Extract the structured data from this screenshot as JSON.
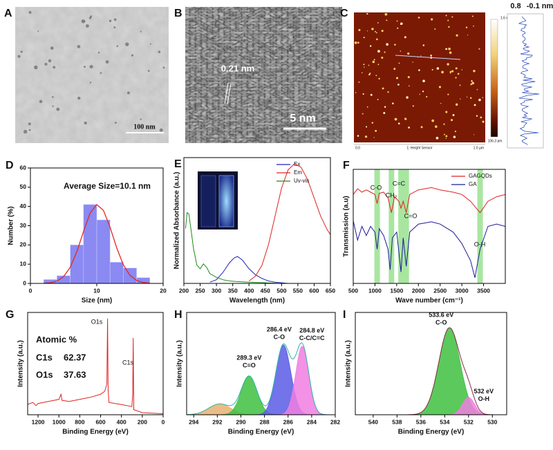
{
  "images": [
    {
      "label": "A",
      "scale_bar": "100 nm"
    },
    {
      "label": "B",
      "annotation": "0.21 nm",
      "scale_bar": "5 nm"
    },
    {
      "label": "C",
      "colorbar": [
        "1.6 nm",
        "106.3 pm"
      ],
      "x_axis": [
        "0.0",
        "1: Height Sensor",
        "1.0 µm"
      ],
      "profile_labels": [
        "0.8",
        "-0.1 nm"
      ]
    }
  ],
  "chart_data": [
    {
      "type": "histogram",
      "label": "D",
      "xlabel": "Size (nm)",
      "ylabel": "Number (%)",
      "annotations": [
        "Average Size=10.1 nm"
      ],
      "bins": [
        2,
        4,
        6,
        8,
        10,
        12,
        14,
        16,
        18
      ],
      "values": [
        2,
        4,
        20,
        41,
        33,
        11,
        8,
        3
      ],
      "color": "#8a8af2",
      "fit": {
        "color": "#e8251f",
        "x": [
          2,
          3,
          4,
          5,
          6,
          7,
          8,
          9,
          10,
          11,
          12,
          13,
          14,
          15,
          16,
          17,
          18
        ],
        "values": [
          0.08,
          0.35,
          1.2,
          3.5,
          8.4,
          16.5,
          27,
          36.6,
          41,
          38,
          29.2,
          18.5,
          9.7,
          4.2,
          1.5,
          0.45,
          0.1
        ]
      },
      "xlim": [
        0,
        20
      ],
      "xticks": [
        0,
        10,
        20
      ],
      "ylim": [
        0,
        60
      ],
      "yticks": [
        0,
        10,
        20,
        30,
        40,
        50,
        60
      ]
    },
    {
      "type": "line",
      "label": "E",
      "xlabel": "Wavelength (nm)",
      "ylabel": "Normalized Absorbance (a.u.)",
      "xlim": [
        200,
        650
      ],
      "xticks": [
        200,
        250,
        300,
        350,
        400,
        450,
        500,
        550,
        600,
        650
      ],
      "ylim": [
        0,
        1.03
      ],
      "legend": "top-right",
      "series": [
        {
          "name": "Ex",
          "color": "#1f1fbf",
          "x": [
            280,
            300,
            320,
            340,
            355,
            365,
            380,
            400,
            420,
            440,
            460,
            480,
            500,
            520
          ],
          "values": [
            0.01,
            0.03,
            0.09,
            0.17,
            0.21,
            0.22,
            0.19,
            0.12,
            0.07,
            0.04,
            0.02,
            0.01,
            0.005,
            0
          ]
        },
        {
          "name": "Em",
          "color": "#e02020",
          "x": [
            400,
            420,
            440,
            460,
            480,
            500,
            520,
            540,
            560,
            580,
            600,
            620,
            640,
            650
          ],
          "values": [
            0.02,
            0.06,
            0.15,
            0.32,
            0.55,
            0.78,
            0.93,
            0.98,
            0.95,
            0.85,
            0.7,
            0.55,
            0.44,
            0.4
          ]
        },
        {
          "name": "Uv-vis",
          "color": "#1a8a1a",
          "x": [
            205,
            210,
            215,
            220,
            230,
            240,
            250,
            260,
            270,
            280,
            300,
            320,
            340,
            360,
            400,
            450,
            500,
            550,
            600,
            650
          ],
          "values": [
            0.45,
            0.58,
            0.57,
            0.48,
            0.28,
            0.15,
            0.12,
            0.16,
            0.13,
            0.08,
            0.05,
            0.03,
            0.02,
            0.015,
            0.01,
            0.005,
            0,
            0,
            0,
            0
          ]
        }
      ]
    },
    {
      "type": "line",
      "label": "F",
      "xlabel": "Wave number (cm⁻¹)",
      "ylabel": "Transmission (a.u)",
      "xlim": [
        500,
        4000
      ],
      "xticks": [
        500,
        1000,
        1500,
        2000,
        2500,
        3000,
        3500
      ],
      "ylim": [
        0,
        1
      ],
      "legend": "top-right",
      "bands": [
        1050,
        1380,
        1600,
        1720,
        3420
      ],
      "band_color": "#a8e6a0",
      "annotations": [
        "C-O",
        "CH₂",
        "C=C",
        "C=O",
        "O-H"
      ],
      "series": [
        {
          "name": "GAGQDs",
          "color": "#e02020",
          "x": [
            500,
            600,
            700,
            800,
            900,
            1000,
            1050,
            1100,
            1200,
            1300,
            1380,
            1450,
            1550,
            1600,
            1650,
            1720,
            1800,
            2000,
            2300,
            2500,
            2800,
            3000,
            3200,
            3420,
            3600,
            3800,
            4000
          ],
          "values": [
            0.78,
            0.83,
            0.8,
            0.82,
            0.8,
            0.78,
            0.7,
            0.79,
            0.8,
            0.75,
            0.62,
            0.76,
            0.72,
            0.66,
            0.72,
            0.62,
            0.78,
            0.82,
            0.84,
            0.82,
            0.8,
            0.78,
            0.72,
            0.62,
            0.72,
            0.76,
            0.78
          ]
        },
        {
          "name": "GA",
          "color": "#1a1a9a",
          "x": [
            500,
            600,
            700,
            800,
            900,
            1000,
            1050,
            1100,
            1200,
            1300,
            1350,
            1400,
            1500,
            1600,
            1650,
            1720,
            1800,
            2000,
            2300,
            2500,
            2800,
            3000,
            3200,
            3300,
            3420,
            3600,
            3800,
            4000
          ],
          "values": [
            0.55,
            0.38,
            0.5,
            0.42,
            0.5,
            0.45,
            0.3,
            0.48,
            0.42,
            0.3,
            0.12,
            0.4,
            0.45,
            0.1,
            0.4,
            0.15,
            0.45,
            0.52,
            0.54,
            0.52,
            0.45,
            0.35,
            0.2,
            0.05,
            0.3,
            0.5,
            0.52,
            0.5
          ]
        }
      ]
    },
    {
      "type": "line",
      "label": "G",
      "xlabel": "Binding Energy (eV)",
      "ylabel": "Intensity (a.u.)",
      "xlim": [
        1300,
        0
      ],
      "xticks": [
        1200,
        1000,
        800,
        600,
        400,
        200,
        0
      ],
      "ylim": [
        0,
        1
      ],
      "annotations": [
        "O1s",
        "C1s"
      ],
      "atomic": {
        "title": "Atomic %",
        "rows": [
          [
            "C1s",
            "62.37"
          ],
          [
            "O1s",
            "37.63"
          ]
        ]
      },
      "series": [
        {
          "color": "#e02020",
          "x": [
            1300,
            1250,
            1220,
            1200,
            1100,
            1000,
            980,
            970,
            900,
            800,
            700,
            600,
            560,
            540,
            533,
            528,
            520,
            400,
            300,
            292,
            287,
            282,
            200,
            100,
            0
          ],
          "values": [
            0.1,
            0.12,
            0.09,
            0.11,
            0.13,
            0.15,
            0.2,
            0.14,
            0.13,
            0.15,
            0.17,
            0.2,
            0.23,
            0.3,
            0.94,
            0.25,
            0.12,
            0.1,
            0.08,
            0.2,
            0.75,
            0.05,
            0.02,
            0.015,
            0.01
          ]
        }
      ]
    },
    {
      "type": "xps_fit",
      "label": "H",
      "xlabel": "Binding Energy (eV)",
      "ylabel": "Intensity (a.u.)",
      "xlim": [
        294.6,
        282
      ],
      "xticks": [
        294,
        292,
        290,
        288,
        286,
        284,
        282
      ],
      "ylim": [
        0,
        0.85
      ],
      "envelope_color": "#2cb5a8",
      "peaks": [
        {
          "center": 291.8,
          "height": 0.09,
          "fwhm": 2.2,
          "color": "#e8b070"
        },
        {
          "name": "C=O",
          "center": 289.3,
          "center_label": "289.3 eV",
          "height": 0.32,
          "fwhm": 1.6,
          "color": "#3fbf3f"
        },
        {
          "name": "C-O",
          "center": 286.4,
          "center_label": "286.4 eV",
          "height": 0.58,
          "fwhm": 1.5,
          "color": "#5a5ae6"
        },
        {
          "name": "C-C/C=C",
          "center": 284.8,
          "center_label": "284.8 eV",
          "height": 0.57,
          "fwhm": 1.3,
          "color": "#f07ee0"
        }
      ]
    },
    {
      "type": "xps_fit",
      "label": "I",
      "xlabel": "Binding Energy (eV)",
      "ylabel": "Intensity (a.u.)",
      "xlim": [
        541.5,
        528.8
      ],
      "xticks": [
        540,
        538,
        536,
        534,
        532,
        530
      ],
      "ylim": [
        0,
        1
      ],
      "envelope_color": "#8a2a4a",
      "peaks": [
        {
          "name": "C-O",
          "center": 533.6,
          "center_label": "533.6 eV",
          "height": 0.85,
          "fwhm": 2.1,
          "color": "#3fbf3f"
        },
        {
          "name": "O-H",
          "center": 532,
          "center_label": "532 eV",
          "height": 0.17,
          "fwhm": 1.2,
          "color": "#f07ee0"
        }
      ]
    }
  ]
}
